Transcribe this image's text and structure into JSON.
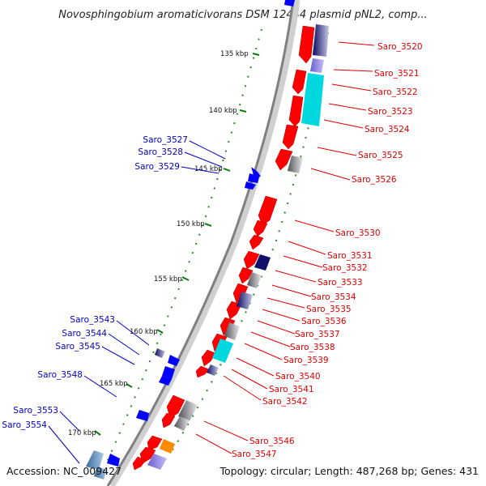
{
  "title": "Novosphingobium aromaticivorans DSM 12444 plasmid pNL2, comp...",
  "footer": {
    "accession": "Accession: NC_009427",
    "topology": "Topology: circular; Length: 487,268 bp; Genes: 431"
  },
  "kbp_ticks": [
    "135 kbp",
    "140 kbp",
    "145 kbp",
    "150 kbp",
    "155 kbp",
    "160 kbp",
    "165 kbp",
    "170 kbp"
  ],
  "right_labels": [
    "Saro_3520",
    "Saro_3521",
    "Saro_3522",
    "Saro_3523",
    "Saro_3524",
    "Saro_3525",
    "Saro_3526",
    "Saro_3530",
    "Saro_3531",
    "Saro_3532",
    "Saro_3533",
    "Saro_3534",
    "Saro_3535",
    "Saro_3536",
    "Saro_3537",
    "Saro_3538",
    "Saro_3539",
    "Saro_3540",
    "Saro_3541",
    "Saro_3542",
    "Saro_3546",
    "Saro_3547"
  ],
  "left_labels": [
    "Saro_3527",
    "Saro_3528",
    "Saro_3529",
    "Saro_3543",
    "Saro_3544",
    "Saro_3545",
    "Saro_3548",
    "Saro_3553",
    "Saro_3554"
  ],
  "colors": {
    "forward_gene": "#ff0000",
    "reverse_gene": "#0000ff",
    "backbone": "#888888",
    "tick_dots": "#2a8a2a",
    "right_label": "#e00000",
    "left_label": "#0000c0",
    "cyan_feature": "#00d8e0",
    "orange_feature": "#ff8a00",
    "purple_feature": "#9080e0",
    "navy_feature": "#10106a",
    "gray_feature": "#b8b8b8"
  },
  "icons": {
    "forward_arrow": "gene-arrow-right-strand",
    "reverse_arrow": "gene-arrow-left-strand"
  }
}
